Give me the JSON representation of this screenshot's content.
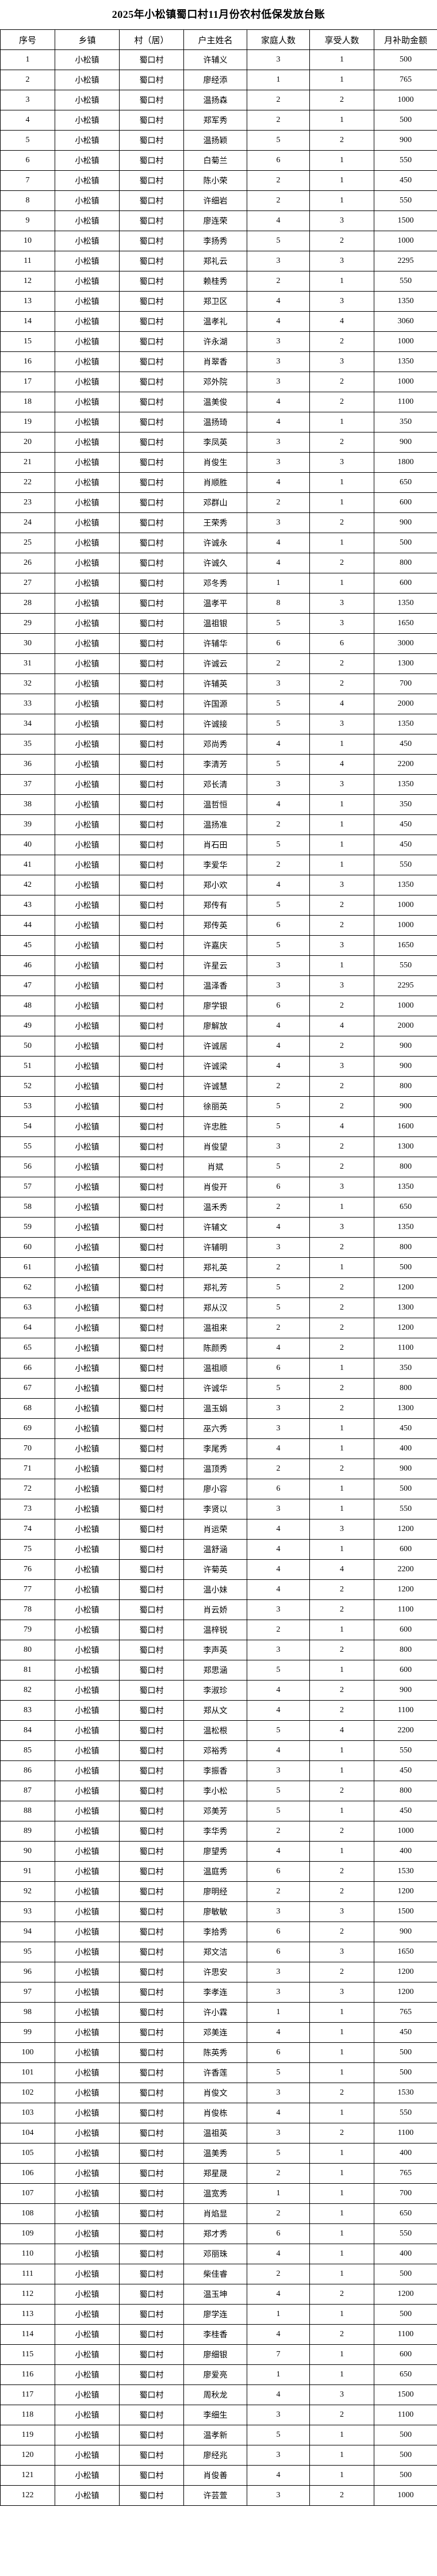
{
  "title": "2025年小松镇蜀口村11月份农村低保发放台账",
  "headers": [
    "序号",
    "乡镇",
    "村（居）",
    "户主姓名",
    "家庭人数",
    "享受人数",
    "月补助金额"
  ],
  "town": "小松镇",
  "village": "蜀口村",
  "rows": [
    [
      1,
      "许辅义",
      3,
      1,
      500
    ],
    [
      2,
      "廖经添",
      1,
      1,
      765
    ],
    [
      3,
      "温扬森",
      2,
      2,
      1000
    ],
    [
      4,
      "郑军秀",
      2,
      1,
      500
    ],
    [
      5,
      "温扬颖",
      5,
      2,
      900
    ],
    [
      6,
      "白菊兰",
      6,
      1,
      550
    ],
    [
      7,
      "陈小荣",
      2,
      1,
      450
    ],
    [
      8,
      "许细岩",
      2,
      1,
      550
    ],
    [
      9,
      "廖连荣",
      4,
      3,
      1500
    ],
    [
      10,
      "李扬秀",
      5,
      2,
      1000
    ],
    [
      11,
      "郑礼云",
      3,
      3,
      2295
    ],
    [
      12,
      "赖桂秀",
      2,
      1,
      550
    ],
    [
      13,
      "郑卫区",
      4,
      3,
      1350
    ],
    [
      14,
      "温孝礼",
      4,
      4,
      3060
    ],
    [
      15,
      "许永湖",
      3,
      2,
      1000
    ],
    [
      16,
      "肖翠香",
      3,
      3,
      1350
    ],
    [
      17,
      "邓外院",
      3,
      2,
      1000
    ],
    [
      18,
      "温美俊",
      4,
      2,
      1100
    ],
    [
      19,
      "温扬琦",
      4,
      1,
      350
    ],
    [
      20,
      "李凤英",
      3,
      2,
      900
    ],
    [
      21,
      "肖俊生",
      3,
      3,
      1800
    ],
    [
      22,
      "肖顺胜",
      4,
      1,
      650
    ],
    [
      23,
      "邓群山",
      2,
      1,
      600
    ],
    [
      24,
      "王荣秀",
      3,
      2,
      900
    ],
    [
      25,
      "许诚永",
      4,
      1,
      500
    ],
    [
      26,
      "许诚久",
      4,
      2,
      800
    ],
    [
      27,
      "邓冬秀",
      1,
      1,
      600
    ],
    [
      28,
      "温孝平",
      8,
      3,
      1350
    ],
    [
      29,
      "温祖银",
      5,
      3,
      1650
    ],
    [
      30,
      "许辅华",
      6,
      6,
      3000
    ],
    [
      31,
      "许诚云",
      2,
      2,
      1300
    ],
    [
      32,
      "许辅英",
      3,
      2,
      700
    ],
    [
      33,
      "许国源",
      5,
      4,
      2000
    ],
    [
      34,
      "许诚接",
      5,
      3,
      1350
    ],
    [
      35,
      "邓尚秀",
      4,
      1,
      450
    ],
    [
      36,
      "李清芳",
      5,
      4,
      2200
    ],
    [
      37,
      "邓长清",
      3,
      3,
      1350
    ],
    [
      38,
      "温哲恒",
      4,
      1,
      350
    ],
    [
      39,
      "温扬准",
      2,
      1,
      450
    ],
    [
      40,
      "肖石田",
      5,
      1,
      450
    ],
    [
      41,
      "李爱华",
      2,
      1,
      550
    ],
    [
      42,
      "郑小欢",
      4,
      3,
      1350
    ],
    [
      43,
      "郑传有",
      5,
      2,
      1000
    ],
    [
      44,
      "郑传英",
      6,
      2,
      1000
    ],
    [
      45,
      "许嘉庆",
      5,
      3,
      1650
    ],
    [
      46,
      "许星云",
      3,
      1,
      550
    ],
    [
      47,
      "温泽香",
      3,
      3,
      2295
    ],
    [
      48,
      "廖学银",
      6,
      2,
      1000
    ],
    [
      49,
      "廖解放",
      4,
      4,
      2000
    ],
    [
      50,
      "许诚居",
      4,
      2,
      900
    ],
    [
      51,
      "许诚梁",
      4,
      3,
      900
    ],
    [
      52,
      "许诚慧",
      2,
      2,
      800
    ],
    [
      53,
      "徐丽英",
      5,
      2,
      900
    ],
    [
      54,
      "许忠胜",
      5,
      4,
      1600
    ],
    [
      55,
      "肖俊望",
      3,
      2,
      1300
    ],
    [
      56,
      "肖斌",
      5,
      2,
      800
    ],
    [
      57,
      "肖俊开",
      6,
      3,
      1350
    ],
    [
      58,
      "温禾秀",
      2,
      1,
      650
    ],
    [
      59,
      "许辅文",
      4,
      3,
      1350
    ],
    [
      60,
      "许辅明",
      3,
      2,
      800
    ],
    [
      61,
      "郑礼英",
      2,
      1,
      500
    ],
    [
      62,
      "郑礼芳",
      5,
      2,
      1200
    ],
    [
      63,
      "郑从汉",
      5,
      2,
      1300
    ],
    [
      64,
      "温祖来",
      2,
      2,
      1200
    ],
    [
      65,
      "陈颜秀",
      4,
      2,
      1100
    ],
    [
      66,
      "温祖顺",
      6,
      1,
      350
    ],
    [
      67,
      "许诚华",
      5,
      2,
      800
    ],
    [
      68,
      "温玉娟",
      3,
      2,
      1300
    ],
    [
      69,
      "巫六秀",
      3,
      1,
      450
    ],
    [
      70,
      "李尾秀",
      4,
      1,
      400
    ],
    [
      71,
      "温顶秀",
      2,
      2,
      900
    ],
    [
      72,
      "廖小容",
      6,
      1,
      500
    ],
    [
      73,
      "李贤以",
      3,
      1,
      550
    ],
    [
      74,
      "肖运荣",
      4,
      3,
      1200
    ],
    [
      75,
      "温舒涵",
      4,
      1,
      600
    ],
    [
      76,
      "许菊英",
      4,
      4,
      2200
    ],
    [
      77,
      "温小妹",
      4,
      2,
      1200
    ],
    [
      78,
      "肖云娇",
      3,
      2,
      1100
    ],
    [
      79,
      "温梓锐",
      2,
      1,
      600
    ],
    [
      80,
      "李声英",
      3,
      2,
      800
    ],
    [
      81,
      "郑思涵",
      5,
      1,
      600
    ],
    [
      82,
      "李淑珍",
      4,
      2,
      900
    ],
    [
      83,
      "郑从文",
      4,
      2,
      1100
    ],
    [
      84,
      "温松根",
      5,
      4,
      2200
    ],
    [
      85,
      "邓裕秀",
      4,
      1,
      550
    ],
    [
      86,
      "李振香",
      3,
      1,
      450
    ],
    [
      87,
      "李小松",
      5,
      2,
      800
    ],
    [
      88,
      "邓美芳",
      5,
      1,
      450
    ],
    [
      89,
      "李华秀",
      2,
      2,
      1000
    ],
    [
      90,
      "廖望秀",
      4,
      1,
      400
    ],
    [
      91,
      "温庭秀",
      6,
      2,
      1530
    ],
    [
      92,
      "廖明经",
      2,
      2,
      1200
    ],
    [
      93,
      "廖敏敏",
      3,
      3,
      1500
    ],
    [
      94,
      "李拾秀",
      6,
      2,
      900
    ],
    [
      95,
      "郑文洁",
      6,
      3,
      1650
    ],
    [
      96,
      "许思安",
      3,
      2,
      1200
    ],
    [
      97,
      "李孝连",
      3,
      3,
      1200
    ],
    [
      98,
      "许小霖",
      1,
      1,
      765
    ],
    [
      99,
      "邓美连",
      4,
      1,
      450
    ],
    [
      100,
      "陈英秀",
      6,
      1,
      500
    ],
    [
      101,
      "许香莲",
      5,
      1,
      500
    ],
    [
      102,
      "肖俊文",
      3,
      2,
      1530
    ],
    [
      103,
      "肖俊栋",
      4,
      1,
      550
    ],
    [
      104,
      "温祖英",
      3,
      2,
      1100
    ],
    [
      105,
      "温美秀",
      5,
      1,
      400
    ],
    [
      106,
      "郑星晟",
      2,
      1,
      765
    ],
    [
      107,
      "温宽秀",
      1,
      1,
      700
    ],
    [
      108,
      "肖焰显",
      2,
      1,
      650
    ],
    [
      109,
      "郑才秀",
      6,
      1,
      550
    ],
    [
      110,
      "邓丽珠",
      4,
      1,
      400
    ],
    [
      111,
      "柴佳睿",
      2,
      1,
      500
    ],
    [
      112,
      "温玉坤",
      4,
      2,
      1200
    ],
    [
      113,
      "廖学连",
      1,
      1,
      500
    ],
    [
      114,
      "李桂香",
      4,
      2,
      1100
    ],
    [
      115,
      "廖细银",
      7,
      1,
      600
    ],
    [
      116,
      "廖爱亮",
      1,
      1,
      650
    ],
    [
      117,
      "周秋龙",
      4,
      3,
      1500
    ],
    [
      118,
      "李细生",
      3,
      2,
      1100
    ],
    [
      119,
      "温孝新",
      5,
      1,
      500
    ],
    [
      120,
      "廖经兆",
      3,
      1,
      500
    ],
    [
      121,
      "肖俊善",
      4,
      1,
      500
    ],
    [
      122,
      "许芸萱",
      3,
      2,
      1000
    ]
  ]
}
